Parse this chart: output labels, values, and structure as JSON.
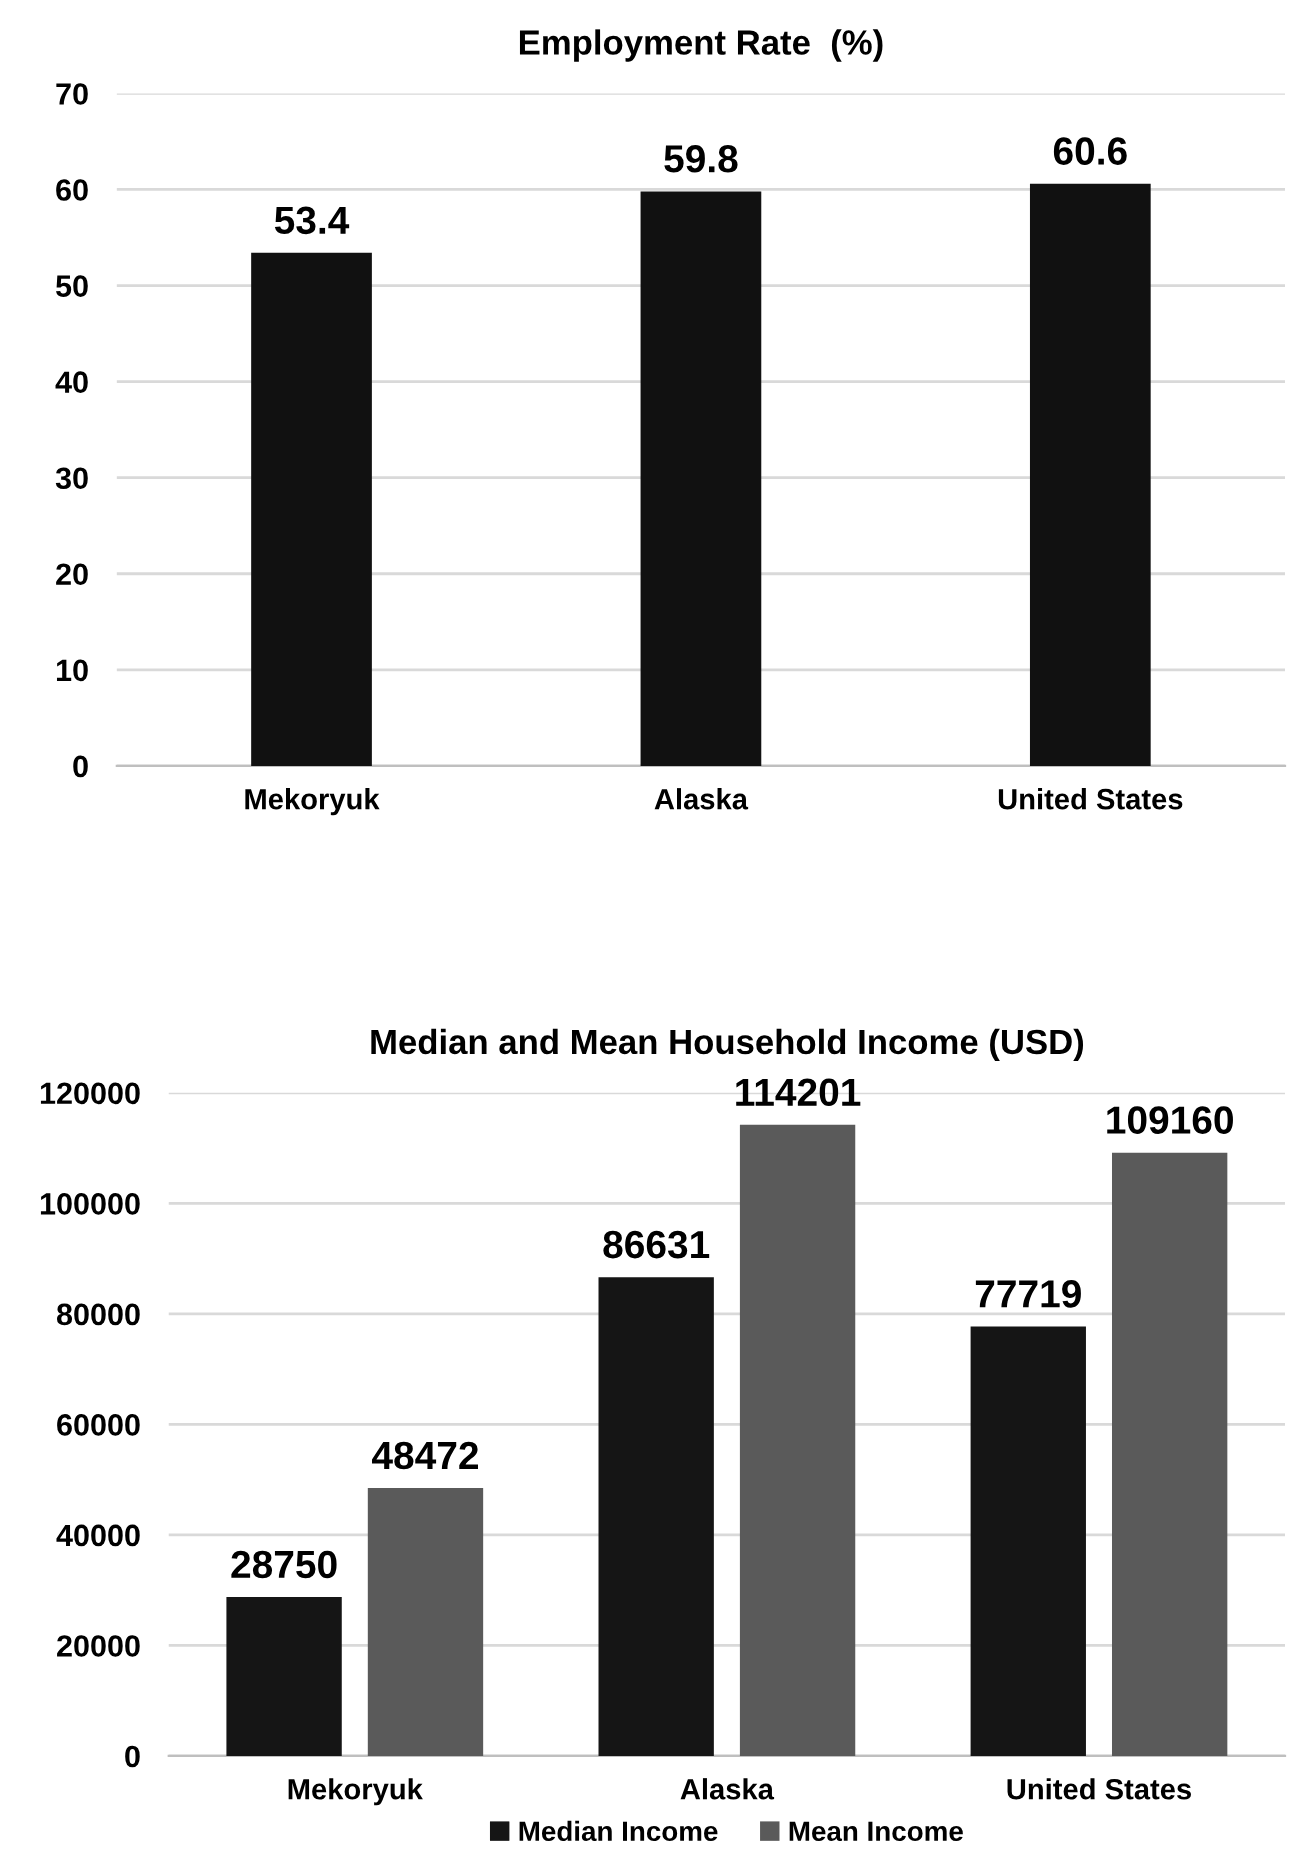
{
  "chart_data": [
    {
      "type": "bar",
      "title": "Employment Rate  (%)",
      "categories": [
        "Mekoryuk",
        "Alaska",
        "United States"
      ],
      "values": [
        53.4,
        59.8,
        60.6
      ],
      "color": "#111111",
      "ylim": [
        0,
        70
      ],
      "yticks": [
        0,
        10,
        20,
        30,
        40,
        50,
        60,
        70
      ],
      "grid": "y",
      "data_labels": true
    },
    {
      "type": "bar",
      "title": "Median and Mean Household Income (USD)",
      "categories": [
        "Mekoryuk",
        "Alaska",
        "United States"
      ],
      "series": [
        {
          "name": "Median Income",
          "color": "#151515",
          "values": [
            28750,
            86631,
            77719
          ]
        },
        {
          "name": "Mean Income",
          "color": "#5a5a5a",
          "values": [
            48472,
            114201,
            109160
          ]
        }
      ],
      "ylim": [
        0,
        120000
      ],
      "yticks": [
        0,
        20000,
        40000,
        60000,
        80000,
        100000,
        120000
      ],
      "grid": "y",
      "legend": "bottom",
      "data_labels": true
    }
  ]
}
